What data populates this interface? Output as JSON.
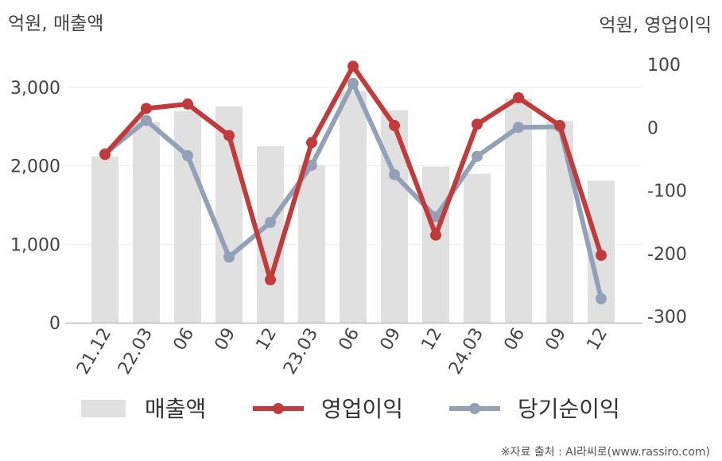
{
  "chart_data": {
    "type": "bar",
    "left_axis_label": "억원, 매출액",
    "right_axis_label": "억원, 영업이익",
    "categories": [
      "21.12",
      "22.03",
      "06",
      "09",
      "12",
      "23.03",
      "06",
      "09",
      "12",
      "24.03",
      "06",
      "09",
      "12"
    ],
    "ylim_left": [
      0,
      3000
    ],
    "yticks_left": [
      "0",
      "1,000",
      "2,000",
      "3,000"
    ],
    "ylim_right": [
      -300,
      100
    ],
    "yticks_right": [
      "-300",
      "-200",
      "-100",
      "0",
      "100"
    ],
    "grid": true,
    "legend_position": "bottom",
    "series": [
      {
        "name": "매출액",
        "type": "bar",
        "axis": "left",
        "color": "#e0e0e0",
        "values": [
          2120,
          2560,
          2700,
          2760,
          2250,
          2010,
          2950,
          2710,
          1990,
          1900,
          2860,
          2570,
          1810
        ]
      },
      {
        "name": "영업이익",
        "type": "line",
        "axis": "right",
        "color": "#c23a3a",
        "values": [
          -43,
          30,
          37,
          -13,
          -242,
          -24,
          97,
          3,
          -171,
          5,
          47,
          3,
          -203
        ]
      },
      {
        "name": "당기순이익",
        "type": "line",
        "axis": "right",
        "color": "#92a0b8",
        "values": [
          -42,
          11,
          -45,
          -206,
          -151,
          -60,
          70,
          -75,
          -142,
          -46,
          0,
          1,
          -272
        ]
      }
    ]
  },
  "source": "※자료 출처 : AI라씨로(www.rassiro.com)"
}
